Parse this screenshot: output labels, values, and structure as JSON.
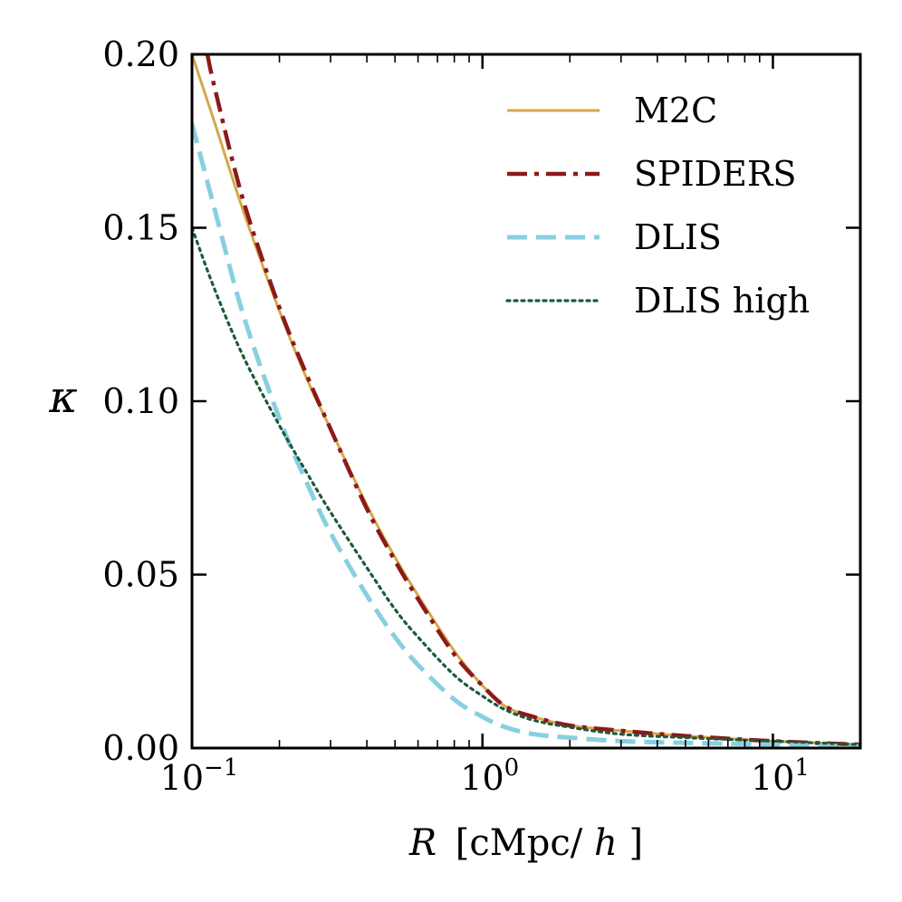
{
  "chart_data": {
    "type": "line",
    "xscale": "log",
    "xlim": [
      0.1,
      20
    ],
    "ylim": [
      0.0,
      0.2
    ],
    "xlabel": {
      "italic": "R",
      "units": "[cMpc/",
      "units_italic": "h",
      "units_end": "]"
    },
    "ylabel": "κ",
    "xticks": [
      {
        "value": 0.1,
        "base": "10",
        "exp": "−1"
      },
      {
        "value": 1,
        "base": "10",
        "exp": "0"
      },
      {
        "value": 10,
        "base": "10",
        "exp": "1"
      }
    ],
    "yticks": [
      {
        "value": 0.0,
        "label": "0.00"
      },
      {
        "value": 0.05,
        "label": "0.05"
      },
      {
        "value": 0.1,
        "label": "0.10"
      },
      {
        "value": 0.15,
        "label": "0.15"
      },
      {
        "value": 0.2,
        "label": "0.20"
      }
    ],
    "legend_position": "top-right",
    "series": [
      {
        "name": "M2C",
        "color": "#d4a84b",
        "style": "solid",
        "x": [
          0.1,
          0.12,
          0.15,
          0.2,
          0.25,
          0.3,
          0.4,
          0.5,
          0.6,
          0.8,
          1.0,
          1.2,
          1.5,
          2.0,
          3.0,
          5.0,
          10.0,
          20.0
        ],
        "y": [
          0.2,
          0.18,
          0.155,
          0.126,
          0.106,
          0.092,
          0.07,
          0.055,
          0.044,
          0.028,
          0.018,
          0.012,
          0.009,
          0.0065,
          0.005,
          0.0035,
          0.002,
          0.001
        ]
      },
      {
        "name": "SPIDERS",
        "color": "#8b1a1a",
        "style": "dashdot",
        "x": [
          0.113,
          0.12,
          0.15,
          0.2,
          0.25,
          0.3,
          0.4,
          0.5,
          0.6,
          0.8,
          1.0,
          1.2,
          1.5,
          2.0,
          3.0,
          5.0,
          10.0,
          20.0
        ],
        "y": [
          0.2,
          0.19,
          0.158,
          0.127,
          0.107,
          0.092,
          0.069,
          0.054,
          0.043,
          0.027,
          0.018,
          0.012,
          0.009,
          0.0065,
          0.005,
          0.0035,
          0.002,
          0.001
        ]
      },
      {
        "name": "DLIS",
        "color": "#88cfe0",
        "style": "dashed",
        "x": [
          0.1,
          0.12,
          0.15,
          0.2,
          0.25,
          0.3,
          0.4,
          0.5,
          0.6,
          0.8,
          1.0,
          1.2,
          1.5,
          2.0,
          3.0,
          5.0,
          10.0,
          20.0
        ],
        "y": [
          0.18,
          0.155,
          0.125,
          0.095,
          0.076,
          0.062,
          0.044,
          0.032,
          0.024,
          0.014,
          0.009,
          0.006,
          0.004,
          0.003,
          0.002,
          0.0015,
          0.001,
          0.0005
        ]
      },
      {
        "name": "DLIS high",
        "color": "#1e5a3c",
        "style": "dotted",
        "x": [
          0.1,
          0.12,
          0.15,
          0.2,
          0.25,
          0.3,
          0.4,
          0.5,
          0.6,
          0.8,
          1.0,
          1.2,
          1.5,
          2.0,
          3.0,
          5.0,
          10.0,
          20.0
        ],
        "y": [
          0.15,
          0.132,
          0.113,
          0.093,
          0.079,
          0.068,
          0.052,
          0.04,
          0.032,
          0.021,
          0.015,
          0.011,
          0.008,
          0.006,
          0.004,
          0.003,
          0.002,
          0.001
        ]
      }
    ]
  }
}
